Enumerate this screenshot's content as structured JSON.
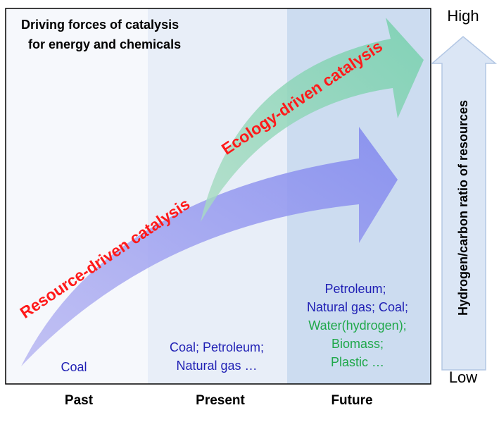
{
  "title": [
    "Driving forces of catalysis",
    "for energy and chemicals"
  ],
  "arrows": {
    "resource": "Resource-driven catalysis",
    "ecology": "Ecology-driven catalysis"
  },
  "columns": [
    {
      "name": "Past",
      "resources": [
        "Coal"
      ]
    },
    {
      "name": "Present",
      "resources": [
        "Coal; Petroleum;",
        "Natural gas …"
      ]
    },
    {
      "name": "Future",
      "resources": [
        "Petroleum;",
        "Natural gas; Coal;",
        "Water(hydrogen);",
        "Biomass;",
        "Plastic …"
      ]
    }
  ],
  "scale": {
    "label": "Hydrogen/carbon ratio of resources",
    "high": "High",
    "low": "Low"
  }
}
